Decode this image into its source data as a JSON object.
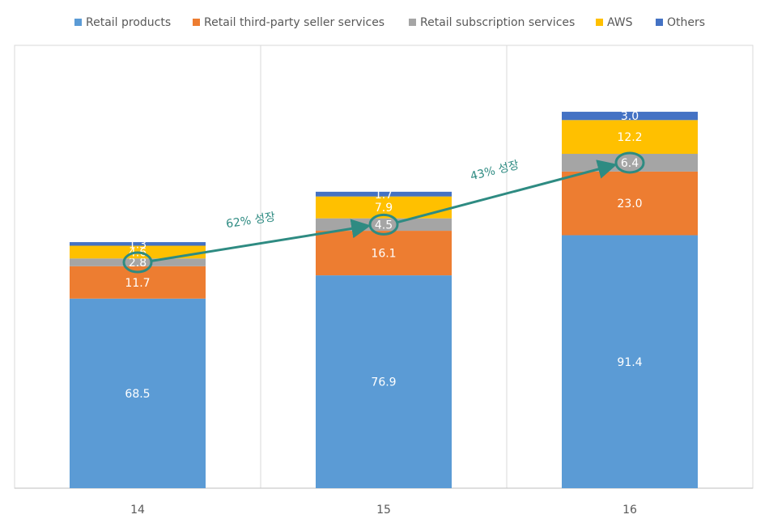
{
  "chart_data": {
    "type": "stacked-bar",
    "categories": [
      "14",
      "15",
      "16"
    ],
    "series": [
      {
        "name": "Retail products",
        "color": "#5b9bd5",
        "values": [
          68.5,
          76.9,
          91.4
        ]
      },
      {
        "name": "Retail third-party seller services",
        "color": "#ed7d31",
        "values": [
          11.7,
          16.1,
          23
        ],
        "value_labels": [
          "11.7",
          "16.1",
          "23.0"
        ]
      },
      {
        "name": "Retail subscription services",
        "color": "#a5a5a5",
        "values": [
          2.8,
          4.5,
          6.4
        ]
      },
      {
        "name": "AWS",
        "color": "#ffc000",
        "values": [
          4.6,
          7.9,
          12.2
        ]
      },
      {
        "name": "Others",
        "color": "#4472c4",
        "values": [
          1.3,
          1.7,
          3
        ],
        "value_labels": [
          "1.3",
          "1.7",
          "3.0"
        ]
      }
    ],
    "ylim": [
      0,
      160
    ],
    "legend": "top",
    "annotations": [
      {
        "text": "62% 성장"
      },
      {
        "text": "43% 성장"
      }
    ],
    "annotation_color": "#2e8b82"
  }
}
